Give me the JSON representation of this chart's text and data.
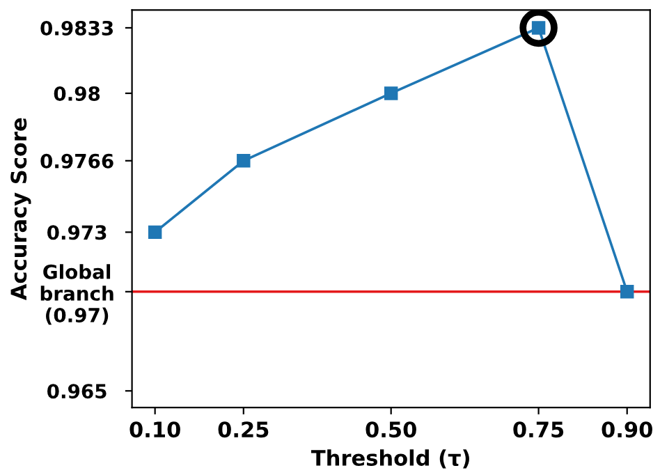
{
  "chart_data": {
    "type": "line",
    "xlabel": "Threshold (τ)",
    "ylabel": "Accuracy Score",
    "x": [
      0.1,
      0.25,
      0.5,
      0.75,
      0.9
    ],
    "series": [
      {
        "color": "#1f77b4",
        "values": [
          0.973,
          0.9766,
          0.98,
          0.9833,
          0.97
        ],
        "marker": "square"
      },
      {
        "type": "scatter",
        "color": "#000000",
        "x": [
          0.75
        ],
        "values": [
          0.9833
        ],
        "marker": "circle"
      }
    ],
    "xlim": [
      0.061,
      0.939
    ],
    "xticks": [
      {
        "value": 0.1,
        "label": "0.10"
      },
      {
        "value": 0.25,
        "label": "0.25"
      },
      {
        "value": 0.5,
        "label": "0.50"
      },
      {
        "value": 0.75,
        "label": "0.75"
      },
      {
        "value": 0.9,
        "label": "0.90"
      }
    ],
    "ylim": [
      0.96416,
      0.9842
    ],
    "yticks": [
      0.965,
      {
        "value": 0.97,
        "label": "Global\nbranch\n(0.97)"
      },
      0.973,
      0.9766,
      0.98,
      0.9833
    ],
    "ref_lines": [
      {
        "axis": "y",
        "value": 0.97,
        "color": "#e41a1c",
        "line_style": "solid"
      }
    ],
    "grid": false,
    "legend": false
  }
}
